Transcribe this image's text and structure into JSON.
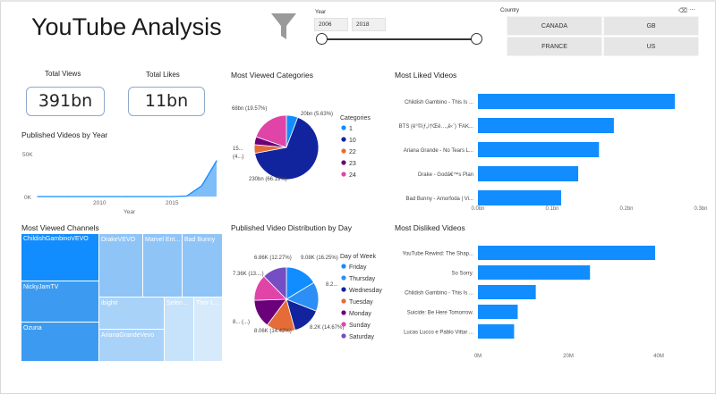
{
  "title": "YouTube Analysis",
  "year_slicer": {
    "label": "Year",
    "from": "2006",
    "to": "2018"
  },
  "country_slicer": {
    "label": "Country",
    "options": [
      "CANADA",
      "GB",
      "FRANCE",
      "US"
    ]
  },
  "cards": {
    "total_views": {
      "label": "Total Views",
      "value": "391bn"
    },
    "total_likes": {
      "label": "Total Likes",
      "value": "11bn"
    }
  },
  "sections": {
    "published_by_year": "Published Videos by Year",
    "most_viewed_categories": "Most Viewed Categories",
    "most_liked_videos": "Most Liked Videos",
    "most_viewed_channels": "Most Viewed Channels",
    "published_by_day": "Published Video Distribution by Day",
    "most_disliked_videos": "Most Disliked Videos"
  },
  "colors": {
    "blue": "#118dff",
    "navy": "#12239e",
    "orange": "#e66c37",
    "maroon": "#6b007b",
    "pink": "#e044a7",
    "purple": "#744ec2",
    "treemap_dark": "#3c9bf0",
    "treemap_light": "#b7dbfb"
  },
  "chart_data": [
    {
      "id": "published_by_year",
      "type": "area",
      "x": [
        2006,
        2008,
        2010,
        2012,
        2014,
        2015,
        2016,
        2017,
        2018
      ],
      "y": [
        0,
        0,
        0,
        0,
        0,
        0,
        800,
        15000,
        50000
      ],
      "y_ticks": [
        "50K",
        "0K"
      ],
      "x_ticks": [
        "2010",
        "2015"
      ],
      "xlabel": "Year",
      "ylim": [
        0,
        50000
      ]
    },
    {
      "id": "most_viewed_categories",
      "type": "pie",
      "legend_title": "Categories",
      "legend": [
        "1",
        "10",
        "22",
        "23",
        "24"
      ],
      "slices": [
        {
          "category": "1",
          "value": 20,
          "label": "20bn (5.63%)"
        },
        {
          "category": "10",
          "value": 230,
          "label": "230bn (66.19%)"
        },
        {
          "category": "22",
          "value": 15,
          "label": "15..."
        },
        {
          "category": "23",
          "value": 14,
          "label": "(4...)"
        },
        {
          "category": "24",
          "value": 68,
          "label": "68bn (19.57%)"
        }
      ]
    },
    {
      "id": "most_liked_videos",
      "type": "bar",
      "categories": [
        "Childish Gambino - This Is ...",
        "BTS (ë°©íƒ„ì†Œë…„ë‹¨) 'FAK...",
        "Ariana Grande - No Tears L...",
        "Drake - Godâ€™s Plan",
        "Bad Bunny - Amorfoda | Vi..."
      ],
      "values": [
        0.265,
        0.183,
        0.163,
        0.135,
        0.112
      ],
      "x_ticks": [
        "0.0bn",
        "0.1bn",
        "0.2bn",
        "0.3bn"
      ],
      "xlim": [
        0,
        0.3
      ]
    },
    {
      "id": "most_viewed_channels",
      "type": "treemap",
      "items": [
        "ChildishGambinoVEVO",
        "NickyJamTV",
        "Ozuna",
        "DrakeVEVO",
        "Marvel Ent...",
        "Bad Bunny",
        "ibighit",
        "ArianaGrandeVevo",
        "Selen...",
        "Thor L..."
      ]
    },
    {
      "id": "published_by_day",
      "type": "pie",
      "legend_title": "Day of Week",
      "legend": [
        "Friday",
        "Thursday",
        "Wednesday",
        "Tuesday",
        "Monday",
        "Sunday",
        "Saturday"
      ],
      "slices": [
        {
          "day": "Friday",
          "value": 9.08,
          "label": "9.08K (16.25%)"
        },
        {
          "day": "Thursday",
          "value": 8.2,
          "label": "8.2..."
        },
        {
          "day": "Wednesday",
          "value": 8.2,
          "label": "8.2K (14.67%)"
        },
        {
          "day": "Tuesday",
          "value": 8.06,
          "label": "8.06K (14.42%)"
        },
        {
          "day": "Monday",
          "value": 8.0,
          "label": "8... (...)"
        },
        {
          "day": "Sunday",
          "value": 7.36,
          "label": "7.36K (13....)"
        },
        {
          "day": "Saturday",
          "value": 6.86,
          "label": "6.86K (12.27%)"
        }
      ]
    },
    {
      "id": "most_disliked_videos",
      "type": "bar",
      "categories": [
        "YouTube Rewind: The Shap...",
        "So Sorry.",
        "Childish Gambino - This Is ...",
        "Suicide: Be Here Tomorrow.",
        "Lucas Lucco e Pablo Vittar ..."
      ],
      "values": [
        49,
        31,
        16,
        11,
        10
      ],
      "x_ticks": [
        "0M",
        "20M",
        "40M"
      ],
      "xlim": [
        0,
        50
      ]
    }
  ]
}
